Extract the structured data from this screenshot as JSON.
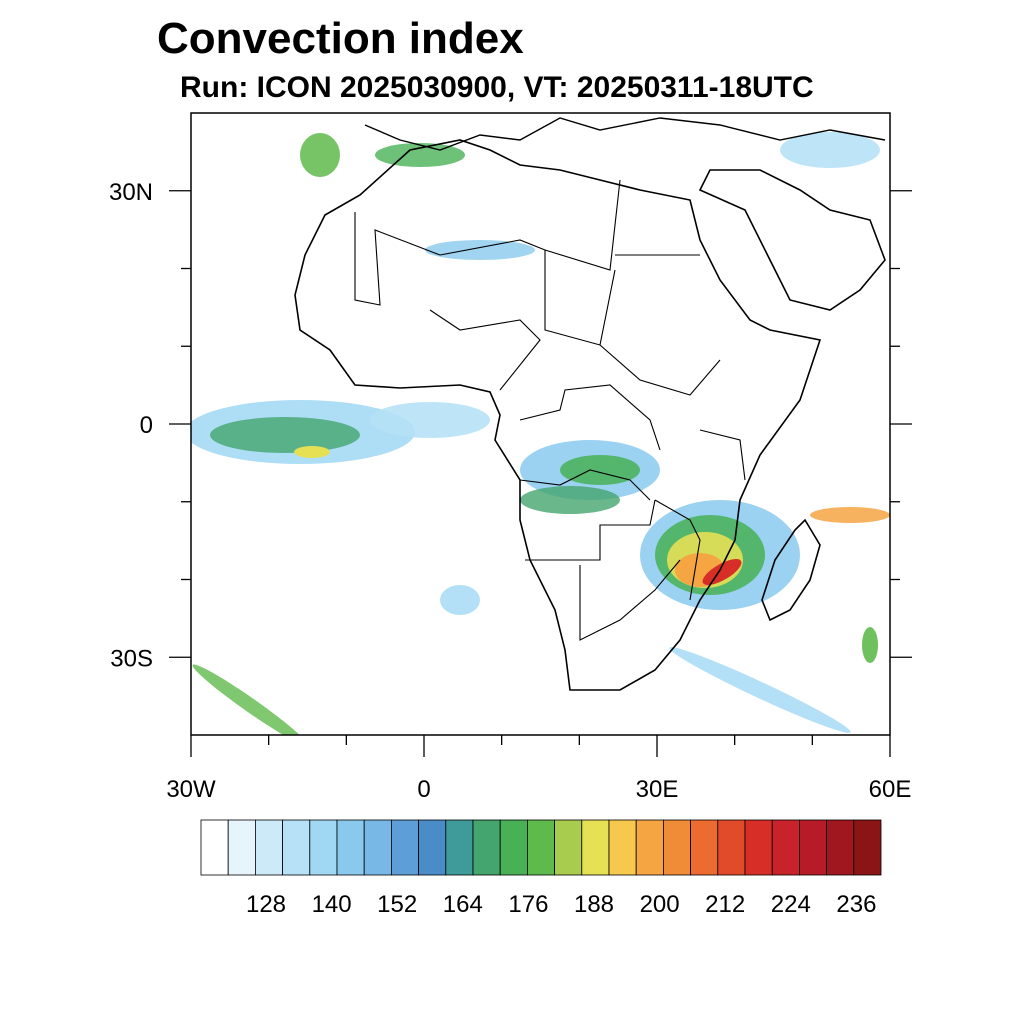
{
  "title": "Convection index",
  "subtitle": "Run: ICON 2025030900,  VT: 20250311-18UTC",
  "map": {
    "extent": {
      "lon_min": -30,
      "lon_max": 60,
      "lat_min": -40,
      "lat_max": 40
    },
    "x_ticks": [
      {
        "value": -30,
        "label": "30W"
      },
      {
        "value": 0,
        "label": "0"
      },
      {
        "value": 30,
        "label": "30E"
      },
      {
        "value": 60,
        "label": "60E"
      }
    ],
    "y_ticks": [
      {
        "value": 30,
        "label": "30N"
      },
      {
        "value": 0,
        "label": "0"
      },
      {
        "value": -30,
        "label": "30S"
      }
    ],
    "minor_lon_ticks": [
      -20,
      -10,
      10,
      20,
      40,
      50
    ],
    "minor_lat_ticks": [
      20,
      10,
      -10,
      -20
    ],
    "region": "Africa",
    "field_colors": {
      "land_outline": "#000000",
      "background": "#ffffff"
    }
  },
  "colorbar": {
    "colors": [
      "#ffffff",
      "#e6f4fc",
      "#cdeaf8",
      "#b6e1f6",
      "#a0d8f4",
      "#8ac9ee",
      "#77b8e6",
      "#5d9ed8",
      "#4a8cc8",
      "#3f9b9a",
      "#44a56e",
      "#48b156",
      "#5fba4c",
      "#a8cc4e",
      "#e6e055",
      "#f6c84d",
      "#f5a542",
      "#f08b38",
      "#ec6b30",
      "#e24b29",
      "#d72f27",
      "#c8232a",
      "#b61b27",
      "#a0171f",
      "#8b1414"
    ],
    "tick_labels": [
      "128",
      "140",
      "152",
      "164",
      "176",
      "188",
      "200",
      "212",
      "224",
      "236"
    ]
  }
}
